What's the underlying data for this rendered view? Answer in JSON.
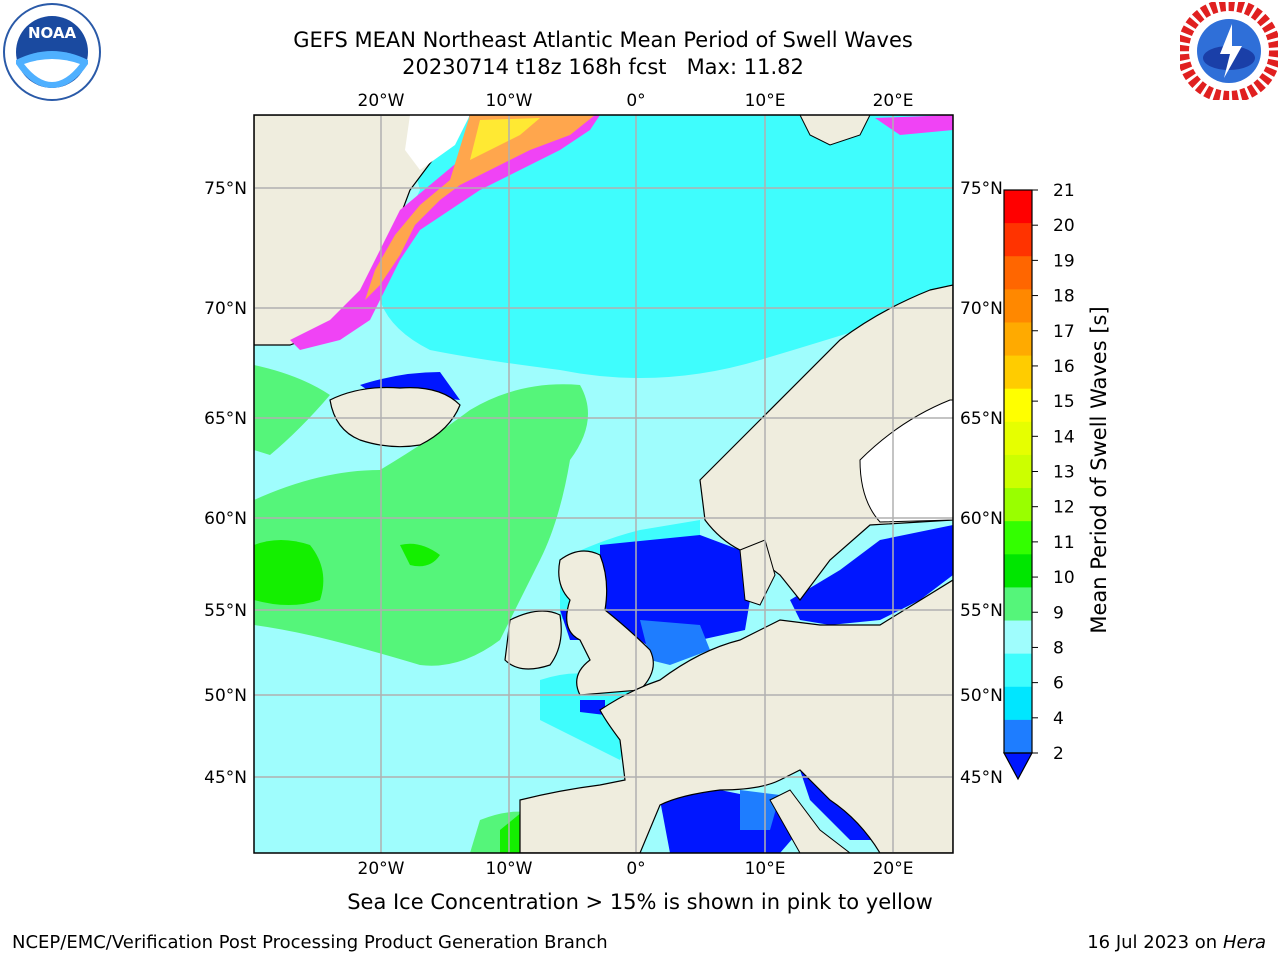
{
  "header": {
    "title_line1": "GEFS MEAN Northeast Atlantic Mean Period of Swell Waves",
    "title_line2": "20230714 t18z 168h fcst   Max: 11.82"
  },
  "logos": {
    "left": {
      "icon": "noaa-logo-icon",
      "text": "NOAA"
    },
    "right": {
      "icon": "nws-logo-icon"
    }
  },
  "map": {
    "lon_labels": [
      "20°W",
      "10°W",
      "0°",
      "10°E",
      "20°E"
    ],
    "lat_labels": [
      "75°N",
      "70°N",
      "65°N",
      "60°N",
      "55°N",
      "50°N",
      "45°N"
    ],
    "colors": {
      "land": "#efedde",
      "sea_light": "#9ffdfd",
      "sea_cyan": "#3ffdfd",
      "sea_green": "#55f57a",
      "sea_bright_green": "#14ef00",
      "sea_blue": "#0016ff",
      "sea_mid_blue": "#1e7dff",
      "ice_pink": "#f043f5",
      "ice_orange": "#ffa64d",
      "ice_yellow": "#ffe933",
      "grid": "#b0b0b0"
    }
  },
  "colorbar": {
    "label": "Mean Period of Swell Waves [s]",
    "ticks": [
      "21",
      "20",
      "19",
      "18",
      "17",
      "16",
      "15",
      "14",
      "13",
      "12",
      "11",
      "10",
      "9",
      "8",
      "6",
      "4",
      "2"
    ],
    "colors": [
      "#ff0000",
      "#ff3300",
      "#ff6600",
      "#ff8800",
      "#ffaa00",
      "#ffcc00",
      "#ffff00",
      "#e6ff00",
      "#ccff00",
      "#99ff00",
      "#33ff00",
      "#00e600",
      "#55f57a",
      "#9ffdfd",
      "#3ffdfd",
      "#00e6ff",
      "#1e7dff"
    ],
    "extend_color": "#0016ff"
  },
  "subtitle": "Sea Ice Concentration > 15% is shown in pink to yellow",
  "footer": {
    "left": "NCEP/EMC/Verification Post Processing Product Generation Branch",
    "right_date": "16 Jul 2023 on ",
    "right_host": "Hera"
  }
}
